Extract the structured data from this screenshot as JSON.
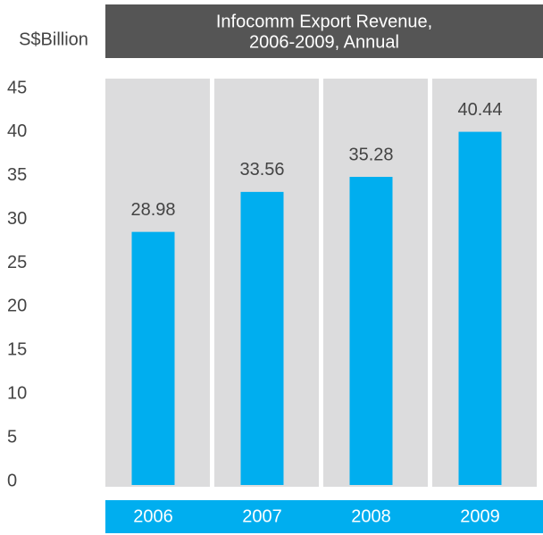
{
  "chart_data": {
    "type": "bar",
    "title": [
      "Infocomm Export Revenue,",
      "2006-2009, Annual"
    ],
    "y_label": "S$Billion",
    "categories": [
      "2006",
      "2007",
      "2008",
      "2009"
    ],
    "values": [
      28.98,
      33.56,
      35.28,
      40.44
    ],
    "color": "#00aeef",
    "ylim": [
      0,
      45
    ],
    "yticks": [
      0,
      5,
      10,
      15,
      20,
      25,
      30,
      35,
      40,
      45
    ]
  }
}
